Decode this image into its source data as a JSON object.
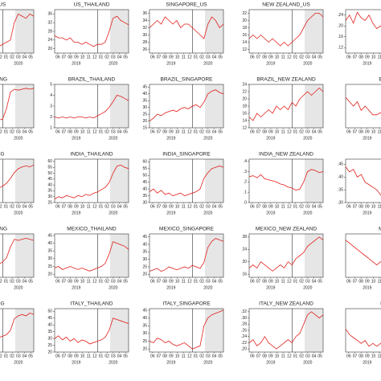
{
  "x_axis": {
    "labels": [
      "06",
      "07",
      "08",
      "09",
      "10",
      "11",
      "12",
      "01",
      "02",
      "03",
      "04",
      "05"
    ],
    "years": [
      "2019",
      "2020"
    ]
  },
  "chart_data": [
    {
      "type": "line",
      "title": "NG_US",
      "color": "#e0201b",
      "ylim": [
        8,
        28
      ],
      "values": [
        10,
        11,
        10,
        12,
        11,
        10,
        11,
        12,
        11,
        10,
        11,
        12,
        13,
        14,
        22,
        26,
        25,
        24,
        26,
        25
      ]
    },
    {
      "type": "line",
      "title": "US_THAILAND",
      "color": "#e0201b",
      "ylim": [
        18,
        38
      ],
      "yticks": [
        20,
        24,
        28,
        32,
        36
      ],
      "values": [
        26,
        25,
        25,
        24,
        25,
        23,
        23,
        22,
        23,
        22,
        21,
        22,
        22,
        23,
        28,
        34,
        35,
        33,
        32,
        31
      ]
    },
    {
      "type": "line",
      "title": "SINGAPORE_US",
      "color": "#e0201b",
      "ylim": [
        25,
        37
      ],
      "yticks": [
        26,
        28,
        30,
        32,
        34,
        36
      ],
      "values": [
        32,
        33,
        34,
        33,
        35,
        34,
        33,
        34,
        32,
        33,
        33,
        32,
        31,
        30,
        29,
        33,
        35,
        34,
        32,
        33
      ]
    },
    {
      "type": "line",
      "title": "NEW ZEALAND_US",
      "color": "#e0201b",
      "ylim": [
        11,
        23
      ],
      "yticks": [
        12,
        14,
        16,
        18,
        20,
        22
      ],
      "values": [
        15,
        16,
        15,
        16,
        15,
        14,
        15,
        14,
        13,
        14,
        13,
        14,
        15,
        16,
        18,
        20,
        21,
        22,
        22,
        21
      ]
    },
    {
      "type": "line",
      "color": "#e0201b",
      "ylim": [
        0.1,
        0.26
      ],
      "yticks": [
        {
          "value": 0.12,
          "label": ".12"
        },
        {
          "value": 0.16,
          "label": ".16"
        },
        {
          "value": 0.2,
          "label": ".20"
        },
        {
          "value": 0.24,
          "label": ".24"
        }
      ],
      "values": [
        0.22,
        0.24,
        0.21,
        0.25,
        0.23,
        0.22,
        0.24,
        0.21,
        0.19,
        0.2,
        0.21,
        0.19,
        0.18,
        0.17,
        0.16,
        0.14,
        0.15,
        0.14,
        0.15,
        0.14
      ]
    },
    {
      "type": "line",
      "title": "G KONG",
      "color": "#e0201b",
      "ylim": [
        0.5,
        5
      ],
      "values": [
        1,
        1.1,
        1,
        1.2,
        1.1,
        1,
        1.1,
        1.2,
        1.1,
        1.2,
        1.3,
        1.4,
        2.5,
        4.2,
        4.5,
        4.4,
        4.5,
        4.6,
        4.5,
        4.6
      ]
    },
    {
      "type": "line",
      "title": "BRAZIL_THAILAND",
      "color": "#e0201b",
      "ylim": [
        1,
        5
      ],
      "yticks": [
        1,
        2,
        3,
        4,
        5
      ],
      "values": [
        2.0,
        1.9,
        2.0,
        1.9,
        2.0,
        1.9,
        2.0,
        2.0,
        1.9,
        2.0,
        1.9,
        2.1,
        2.3,
        2.5,
        2.9,
        3.4,
        4.0,
        3.9,
        3.7,
        3.5
      ]
    },
    {
      "type": "line",
      "title": "BRAZIL_SINGAPORE",
      "color": "#e0201b",
      "ylim": [
        15,
        47
      ],
      "yticks": [
        15,
        20,
        25,
        30,
        35,
        40,
        45
      ],
      "values": [
        20,
        22,
        25,
        24,
        26,
        27,
        28,
        27,
        29,
        30,
        29,
        31,
        32,
        30,
        34,
        40,
        42,
        43,
        41,
        40
      ]
    },
    {
      "type": "line",
      "title": "BRAZIL_NEW ZEALAND",
      "color": "#e0201b",
      "ylim": [
        12,
        24
      ],
      "yticks": [
        12,
        14,
        16,
        18,
        20,
        22,
        24
      ],
      "values": [
        15,
        14,
        16,
        15,
        16,
        17,
        16,
        18,
        17,
        18,
        17,
        19,
        18,
        20,
        21,
        22,
        21,
        22,
        23,
        22
      ]
    },
    {
      "type": "line",
      "title": "BR",
      "color": "#e0201b",
      "ylim": [
        0,
        1
      ],
      "values": [
        0.7,
        0.6,
        0.5,
        0.6,
        0.4,
        0.5,
        0.4,
        0.3,
        0.3,
        0.35,
        0.3,
        0.32,
        0.3,
        0.28,
        0.3,
        0.27,
        0.28,
        0.3,
        0.29,
        0.28
      ]
    },
    {
      "type": "line",
      "title": "KONG",
      "color": "#e0201b",
      "ylim": [
        15,
        60
      ],
      "values": [
        20,
        22,
        21,
        24,
        23,
        25,
        24,
        26,
        27,
        28,
        30,
        32,
        35,
        40,
        46,
        50,
        52,
        53,
        52,
        54
      ]
    },
    {
      "type": "line",
      "title": "INDIA_THAILAND",
      "color": "#e0201b",
      "ylim": [
        25,
        62
      ],
      "yticks": [
        25,
        30,
        35,
        40,
        45,
        50,
        55,
        60
      ],
      "values": [
        28,
        30,
        29,
        31,
        30,
        29,
        31,
        30,
        32,
        31,
        33,
        34,
        36,
        38,
        42,
        50,
        56,
        57,
        55,
        54
      ]
    },
    {
      "type": "line",
      "title": "INDIA_SINGAPORE",
      "color": "#e0201b",
      "ylim": [
        30,
        62
      ],
      "yticks": [
        30,
        35,
        40,
        45,
        50,
        55,
        60
      ],
      "values": [
        38,
        40,
        37,
        39,
        36,
        37,
        35,
        36,
        37,
        35,
        36,
        37,
        38,
        40,
        48,
        52,
        55,
        56,
        57,
        56
      ]
    },
    {
      "type": "line",
      "title": "INDIA_NEW ZEALAND",
      "color": "#e0201b",
      "ylim": [
        0,
        0.42
      ],
      "yticks": [
        {
          "value": 0,
          "label": ".0"
        },
        {
          "value": 0.1,
          "label": ".1"
        },
        {
          "value": 0.2,
          "label": ".2"
        },
        {
          "value": 0.3,
          "label": ".3"
        },
        {
          "value": 0.4,
          "label": ".4"
        }
      ],
      "values": [
        0.25,
        0.26,
        0.24,
        0.27,
        0.23,
        0.22,
        0.21,
        0.2,
        0.18,
        0.17,
        0.15,
        0.14,
        0.12,
        0.13,
        0.2,
        0.3,
        0.32,
        0.31,
        0.29,
        0.3
      ]
    },
    {
      "type": "line",
      "color": "#e0201b",
      "ylim": [
        0.3,
        0.47
      ],
      "yticks": [
        {
          "value": 0.3,
          "label": ".30"
        },
        {
          "value": 0.35,
          "label": ".35"
        },
        {
          "value": 0.4,
          "label": ".40"
        },
        {
          "value": 0.45,
          "label": ".45"
        }
      ],
      "values": [
        0.44,
        0.42,
        0.43,
        0.4,
        0.41,
        0.38,
        0.37,
        0.36,
        0.35,
        0.33,
        0.34,
        0.36,
        0.35,
        0.34,
        0.36,
        0.35,
        0.36,
        0.35,
        0.34,
        0.35
      ]
    },
    {
      "type": "line",
      "title": "G KONG",
      "color": "#e0201b",
      "ylim": [
        10,
        50
      ],
      "values": [
        15,
        17,
        16,
        18,
        17,
        16,
        18,
        19,
        20,
        21,
        22,
        24,
        28,
        38,
        45,
        44,
        45,
        46,
        45,
        44
      ]
    },
    {
      "type": "line",
      "title": "MEXICO_THAILAND",
      "color": "#e0201b",
      "ylim": [
        18,
        46
      ],
      "yticks": [
        20,
        25,
        30,
        35,
        40,
        45
      ],
      "values": [
        24,
        25,
        23,
        24,
        25,
        24,
        23,
        24,
        23,
        22,
        23,
        24,
        25,
        27,
        33,
        41,
        40,
        39,
        38,
        36
      ]
    },
    {
      "type": "line",
      "title": "MEXICO_SINGAPORE",
      "color": "#e0201b",
      "ylim": [
        18,
        47
      ],
      "yticks": [
        20,
        25,
        30,
        35,
        40,
        45
      ],
      "values": [
        22,
        23,
        24,
        22,
        23,
        25,
        24,
        23,
        24,
        25,
        24,
        26,
        25,
        24,
        28,
        38,
        42,
        44,
        43,
        42
      ]
    },
    {
      "type": "line",
      "title": "MEXICO_NEW ZEALAND",
      "color": "#e0201b",
      "ylim": [
        15,
        29
      ],
      "yticks": [
        16,
        20,
        24,
        28
      ],
      "values": [
        18,
        19,
        18,
        20,
        19,
        18,
        17,
        18,
        19,
        18,
        20,
        19,
        21,
        22,
        23,
        25,
        26,
        27,
        28,
        27
      ]
    },
    {
      "type": "line",
      "title": "ME",
      "color": "#e0201b",
      "ylim": [
        15,
        29
      ],
      "values": [
        27,
        26,
        25,
        24,
        23,
        22,
        21,
        20,
        19,
        20,
        21,
        19,
        18,
        19,
        20,
        19,
        18,
        19,
        18,
        19
      ]
    },
    {
      "type": "line",
      "title": "KONG",
      "color": "#e0201b",
      "ylim": [
        15,
        45
      ],
      "values": [
        20,
        21,
        22,
        21,
        23,
        22,
        21,
        22,
        23,
        24,
        25,
        26,
        27,
        30,
        38,
        40,
        41,
        40,
        42,
        41
      ]
    },
    {
      "type": "line",
      "title": "ITALY_THAILAND",
      "color": "#e0201b",
      "ylim": [
        20,
        52
      ],
      "yticks": [
        20,
        25,
        30,
        35,
        40,
        45,
        50
      ],
      "values": [
        30,
        32,
        29,
        31,
        28,
        30,
        27,
        29,
        28,
        26,
        27,
        28,
        29,
        31,
        36,
        45,
        44,
        43,
        42,
        41
      ]
    },
    {
      "type": "line",
      "title": "ITALY_SINGAPORE",
      "color": "#e0201b",
      "ylim": [
        18,
        46
      ],
      "yticks": [
        20,
        25,
        30,
        35,
        40,
        45
      ],
      "values": [
        25,
        24,
        27,
        26,
        24,
        25,
        23,
        22,
        23,
        24,
        22,
        20,
        21,
        22,
        35,
        40,
        42,
        43,
        44,
        45
      ]
    },
    {
      "type": "line",
      "title": "ITALY_NEW ZEALAND",
      "color": "#e0201b",
      "ylim": [
        0.19,
        0.33
      ],
      "yticks": [
        {
          "value": 0.2,
          "label": ".20"
        },
        {
          "value": 0.22,
          "label": ".22"
        },
        {
          "value": 0.24,
          "label": ".24"
        },
        {
          "value": 0.26,
          "label": ".26"
        },
        {
          "value": 0.28,
          "label": ".28"
        },
        {
          "value": 0.3,
          "label": ".30"
        },
        {
          "value": 0.32,
          "label": ".32"
        }
      ],
      "values": [
        0.22,
        0.23,
        0.21,
        0.22,
        0.24,
        0.22,
        0.21,
        0.2,
        0.21,
        0.22,
        0.23,
        0.22,
        0.24,
        0.25,
        0.28,
        0.31,
        0.32,
        0.31,
        0.3,
        0.31
      ]
    },
    {
      "type": "line",
      "title": "IT",
      "color": "#e0201b",
      "ylim": [
        0.18,
        0.33
      ],
      "values": [
        0.26,
        0.24,
        0.23,
        0.22,
        0.21,
        0.22,
        0.2,
        0.21,
        0.2,
        0.21,
        0.22,
        0.23,
        0.22,
        0.24,
        0.23,
        0.22,
        0.23,
        0.22,
        0.21,
        0.22
      ]
    }
  ]
}
